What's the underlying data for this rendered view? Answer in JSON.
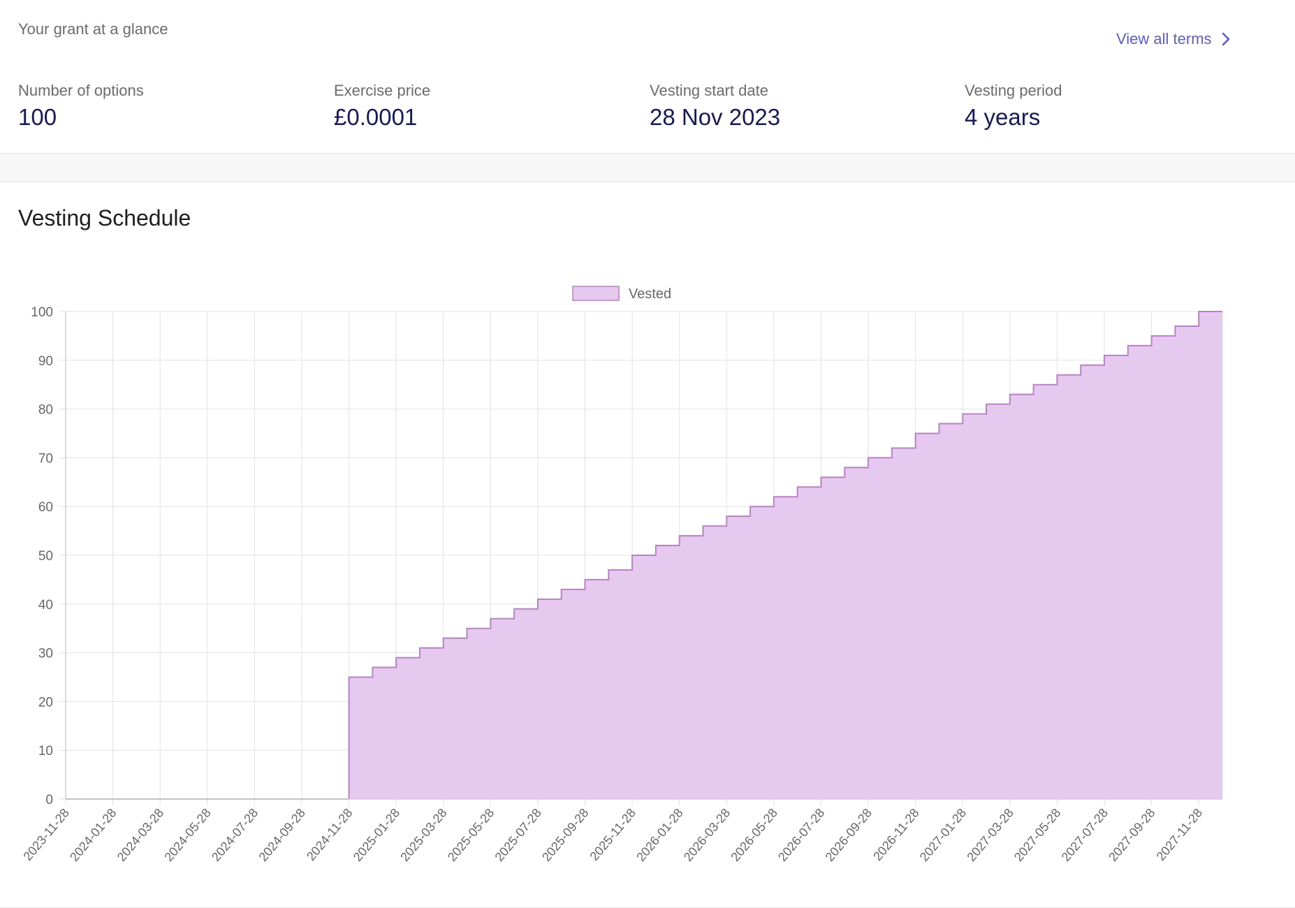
{
  "glance": {
    "title": "Your grant at a glance",
    "view_all_label": "View all terms",
    "stats": [
      {
        "label": "Number of options",
        "value": "100"
      },
      {
        "label": "Exercise price",
        "value": "£0.0001"
      },
      {
        "label": "Vesting start date",
        "value": "28 Nov 2023"
      },
      {
        "label": "Vesting period",
        "value": "4 years"
      }
    ]
  },
  "vesting": {
    "title": "Vesting Schedule"
  },
  "colors": {
    "accent_link": "#5b5bd6",
    "value_text": "#17195a",
    "series_fill": "#e6c9ee",
    "series_line": "#bb80c8"
  },
  "chart_data": {
    "type": "area",
    "step": true,
    "legend": [
      "Vested"
    ],
    "legend_position": "top-center",
    "ylim": [
      0,
      100
    ],
    "y_ticks": [
      0,
      10,
      20,
      30,
      40,
      50,
      60,
      70,
      80,
      90,
      100
    ],
    "grid": true,
    "x_tick_labels": [
      "2023-11-28",
      "2024-01-28",
      "2024-03-28",
      "2024-05-28",
      "2024-07-28",
      "2024-09-28",
      "2024-11-28",
      "2025-01-28",
      "2025-03-28",
      "2025-05-28",
      "2025-07-28",
      "2025-09-28",
      "2025-11-28",
      "2026-01-28",
      "2026-03-28",
      "2026-05-28",
      "2026-07-28",
      "2026-09-28",
      "2026-11-28",
      "2027-01-28",
      "2027-03-28",
      "2027-05-28",
      "2027-07-28",
      "2027-09-28",
      "2027-11-28"
    ],
    "x": [
      "2023-11-28",
      "2023-12-28",
      "2024-01-28",
      "2024-02-28",
      "2024-03-28",
      "2024-04-28",
      "2024-05-28",
      "2024-06-28",
      "2024-07-28",
      "2024-08-28",
      "2024-09-28",
      "2024-10-28",
      "2024-11-28",
      "2024-12-28",
      "2025-01-28",
      "2025-02-28",
      "2025-03-28",
      "2025-04-28",
      "2025-05-28",
      "2025-06-28",
      "2025-07-28",
      "2025-08-28",
      "2025-09-28",
      "2025-10-28",
      "2025-11-28",
      "2025-12-28",
      "2026-01-28",
      "2026-02-28",
      "2026-03-28",
      "2026-04-28",
      "2026-05-28",
      "2026-06-28",
      "2026-07-28",
      "2026-08-28",
      "2026-09-28",
      "2026-10-28",
      "2026-11-28",
      "2026-12-28",
      "2027-01-28",
      "2027-02-28",
      "2027-03-28",
      "2027-04-28",
      "2027-05-28",
      "2027-06-28",
      "2027-07-28",
      "2027-08-28",
      "2027-09-28",
      "2027-10-28",
      "2027-11-28",
      "2027-12-28"
    ],
    "series": [
      {
        "name": "Vested",
        "values": [
          0,
          0,
          0,
          0,
          0,
          0,
          0,
          0,
          0,
          0,
          0,
          0,
          25,
          27,
          29,
          31,
          33,
          35,
          37,
          39,
          41,
          43,
          45,
          47,
          50,
          52,
          54,
          56,
          58,
          60,
          62,
          64,
          66,
          68,
          70,
          72,
          75,
          77,
          79,
          81,
          83,
          85,
          87,
          89,
          91,
          93,
          95,
          97,
          100,
          100
        ]
      }
    ]
  }
}
